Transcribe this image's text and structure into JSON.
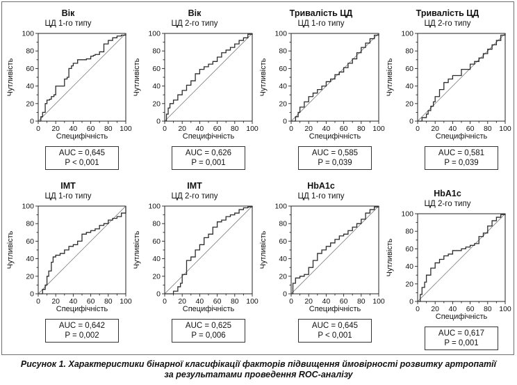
{
  "figure": {
    "caption_line1": "Рисунок 1. Характеристики бінарної класифікації факторів підвищення ймовірності розвитку артропатії",
    "caption_line2": "за результатами проведення ROC-аналізу"
  },
  "chart_data": [
    {
      "type": "line",
      "title": "Вік",
      "subtitle": "ЦД 1-го типу",
      "xlabel": "Специфічність",
      "ylabel": "Чутливість",
      "xlim": [
        0,
        100
      ],
      "ylim": [
        0,
        100
      ],
      "xticks": [
        "0",
        "20",
        "40",
        "60",
        "80",
        "100"
      ],
      "yticks": [
        "0",
        "20",
        "40",
        "60",
        "80",
        "100"
      ],
      "auc_text": "AUC = 0,645",
      "p_text": "P < 0,001",
      "x": [
        0,
        3,
        5,
        8,
        10,
        13,
        15,
        18,
        20,
        22,
        25,
        28,
        30,
        33,
        35,
        38,
        40,
        45,
        50,
        55,
        60,
        63,
        65,
        70,
        75,
        80,
        85,
        90,
        95,
        100
      ],
      "y": [
        0,
        5,
        10,
        20,
        24,
        25,
        28,
        30,
        40,
        40,
        40,
        40,
        48,
        50,
        60,
        63,
        66,
        70,
        70,
        71,
        74,
        75,
        76,
        79,
        88,
        92,
        95,
        97,
        98,
        100
      ]
    },
    {
      "type": "line",
      "title": "Вік",
      "subtitle": "ЦД 2-го типу",
      "xlabel": "Специфічність",
      "ylabel": "Чутливість",
      "xlim": [
        0,
        100
      ],
      "ylim": [
        0,
        100
      ],
      "xticks": [
        "0",
        "20",
        "40",
        "60",
        "80",
        "100"
      ],
      "yticks": [
        "0",
        "20",
        "40",
        "60",
        "80",
        "100"
      ],
      "auc_text": "AUC = 0,626",
      "p_text": "P = 0,001",
      "x": [
        0,
        2,
        4,
        6,
        10,
        15,
        20,
        25,
        30,
        35,
        40,
        45,
        50,
        55,
        60,
        65,
        70,
        75,
        80,
        85,
        90,
        95,
        100
      ],
      "y": [
        0,
        8,
        15,
        20,
        24,
        30,
        35,
        41,
        46,
        54,
        59,
        62,
        65,
        68,
        73,
        78,
        81,
        84,
        88,
        92,
        95,
        99,
        100
      ]
    },
    {
      "type": "line",
      "title": "Тривалість ЦД",
      "subtitle": "ЦД 1-го типу",
      "xlabel": "Специфічність",
      "ylabel": "Чутливість",
      "xlim": [
        0,
        100
      ],
      "ylim": [
        0,
        100
      ],
      "xticks": [
        "0",
        "20",
        "40",
        "60",
        "80",
        "100"
      ],
      "yticks": [
        "0",
        "20",
        "40",
        "60",
        "80",
        "100"
      ],
      "auc_text": "AUC = 0,585",
      "p_text": "P = 0,039",
      "x": [
        0,
        5,
        8,
        10,
        15,
        20,
        25,
        30,
        35,
        40,
        45,
        50,
        55,
        60,
        65,
        70,
        75,
        80,
        85,
        90,
        95,
        100
      ],
      "y": [
        0,
        5,
        10,
        16,
        22,
        28,
        32,
        36,
        40,
        45,
        48,
        53,
        56,
        61,
        66,
        71,
        78,
        84,
        89,
        94,
        98,
        100
      ]
    },
    {
      "type": "line",
      "title": "Тривалість ЦД",
      "subtitle": "ЦД 2-го типу",
      "xlabel": "Специфічність",
      "ylabel": "Чутливість",
      "xlim": [
        0,
        100
      ],
      "ylim": [
        0,
        100
      ],
      "xticks": [
        "0",
        "20",
        "40",
        "60",
        "80",
        "100"
      ],
      "yticks": [
        "0",
        "20",
        "40",
        "60",
        "80",
        "100"
      ],
      "auc_text": "AUC = 0,581",
      "p_text": "P = 0,039",
      "x": [
        0,
        5,
        10,
        12,
        15,
        18,
        20,
        25,
        30,
        35,
        40,
        50,
        60,
        65,
        70,
        75,
        80,
        85,
        90,
        95,
        100
      ],
      "y": [
        0,
        4,
        8,
        12,
        17,
        22,
        28,
        36,
        44,
        48,
        52,
        59,
        65,
        68,
        72,
        77,
        82,
        87,
        92,
        98,
        100
      ]
    },
    {
      "type": "line",
      "title": "IMT",
      "subtitle": "ЦД 1-го типу",
      "xlabel": "Специфічність",
      "ylabel": "Чутливість",
      "xlim": [
        0,
        100
      ],
      "ylim": [
        0,
        100
      ],
      "xticks": [
        "0",
        "20",
        "40",
        "60",
        "80",
        "100"
      ],
      "yticks": [
        "0",
        "20",
        "40",
        "60",
        "80",
        "100"
      ],
      "auc_text": "AUC = 0,642",
      "p_text": "P = 0,002",
      "x": [
        0,
        5,
        8,
        10,
        12,
        15,
        17,
        20,
        25,
        30,
        35,
        40,
        45,
        50,
        55,
        60,
        65,
        70,
        75,
        80,
        85,
        90,
        95,
        100
      ],
      "y": [
        0,
        5,
        10,
        20,
        26,
        36,
        42,
        44,
        46,
        50,
        54,
        56,
        60,
        68,
        70,
        72,
        74,
        78,
        80,
        84,
        86,
        88,
        92,
        100
      ]
    },
    {
      "type": "line",
      "title": "IMT",
      "subtitle": "ЦД 2-го типу",
      "xlabel": "Специфічність",
      "ylabel": "Чутливість",
      "xlim": [
        0,
        100
      ],
      "ylim": [
        0,
        100
      ],
      "xticks": [
        "0",
        "20",
        "40",
        "60",
        "80",
        "100"
      ],
      "yticks": [
        "0",
        "20",
        "40",
        "60",
        "80",
        "100"
      ],
      "auc_text": "AUC = 0,625",
      "p_text": "P = 0,006",
      "x": [
        0,
        10,
        15,
        18,
        20,
        25,
        30,
        35,
        40,
        45,
        50,
        55,
        60,
        65,
        70,
        75,
        80,
        85,
        90,
        95,
        100
      ],
      "y": [
        0,
        3,
        8,
        12,
        22,
        38,
        42,
        50,
        56,
        64,
        68,
        76,
        82,
        84,
        88,
        90,
        92,
        96,
        98,
        99,
        100
      ]
    },
    {
      "type": "line",
      "title": "HbA1c",
      "subtitle": "ЦД 1-го типу",
      "xlabel": "Специфічність",
      "ylabel": "Чутливість",
      "xlim": [
        0,
        100
      ],
      "ylim": [
        0,
        100
      ],
      "xticks": [
        "0",
        "20",
        "40",
        "60",
        "80",
        "100"
      ],
      "yticks": [
        "0",
        "20",
        "40",
        "60",
        "80",
        "100"
      ],
      "auc_text": "AUC = 0,645",
      "p_text": "P < 0,001",
      "x": [
        0,
        2,
        5,
        10,
        15,
        20,
        25,
        30,
        35,
        40,
        45,
        50,
        55,
        60,
        65,
        70,
        75,
        80,
        85,
        90,
        95,
        100
      ],
      "y": [
        0,
        12,
        18,
        20,
        22,
        30,
        38,
        46,
        50,
        54,
        58,
        62,
        66,
        68,
        72,
        76,
        80,
        85,
        92,
        96,
        99,
        100
      ]
    },
    {
      "type": "line",
      "title": "HbA1c",
      "subtitle": "ЦД 2-го типу",
      "xlabel": "Специфічність",
      "ylabel": "Чутливість",
      "xlim": [
        0,
        100
      ],
      "ylim": [
        0,
        100
      ],
      "xticks": [
        "0",
        "20",
        "40",
        "60",
        "80",
        "100"
      ],
      "yticks": [
        "0",
        "20",
        "40",
        "60",
        "80",
        "100"
      ],
      "auc_text": "AUC = 0,617",
      "p_text": "P = 0,001",
      "x": [
        0,
        3,
        5,
        8,
        10,
        15,
        20,
        25,
        30,
        35,
        40,
        50,
        55,
        60,
        65,
        70,
        75,
        80,
        85,
        90,
        95,
        100
      ],
      "y": [
        0,
        8,
        16,
        22,
        30,
        38,
        44,
        48,
        52,
        54,
        58,
        60,
        62,
        64,
        66,
        74,
        78,
        86,
        92,
        96,
        99,
        100
      ]
    }
  ]
}
